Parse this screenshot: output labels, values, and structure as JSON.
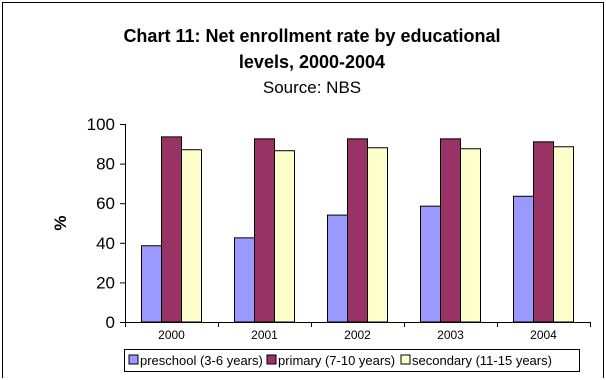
{
  "chart_data": {
    "type": "bar",
    "title": "Chart 11: Net enrollment rate by educational levels, 2000-2004",
    "title_lines": [
      "Chart 11: Net enrollment rate by educational",
      "levels, 2000-2004"
    ],
    "subtitle": "Source: NBS",
    "xlabel": "",
    "ylabel": "%",
    "ylim": [
      0,
      100
    ],
    "yticks": [
      0,
      20,
      40,
      60,
      80,
      100
    ],
    "grid": false,
    "legend_position": "bottom",
    "categories": [
      "2000",
      "2001",
      "2002",
      "2003",
      "2004"
    ],
    "series": [
      {
        "name": "preschool (3-6 years)",
        "color": "#9999ff",
        "values": [
          38.5,
          42.5,
          54,
          58.5,
          63.5
        ]
      },
      {
        "name": "primary (7-10 years)",
        "color": "#993366",
        "values": [
          93.5,
          92.5,
          92.5,
          92.5,
          91
        ]
      },
      {
        "name": "secondary (11-15 years)",
        "color": "#ffffcc",
        "values": [
          87,
          86.5,
          88,
          87.5,
          88.5
        ]
      }
    ]
  }
}
